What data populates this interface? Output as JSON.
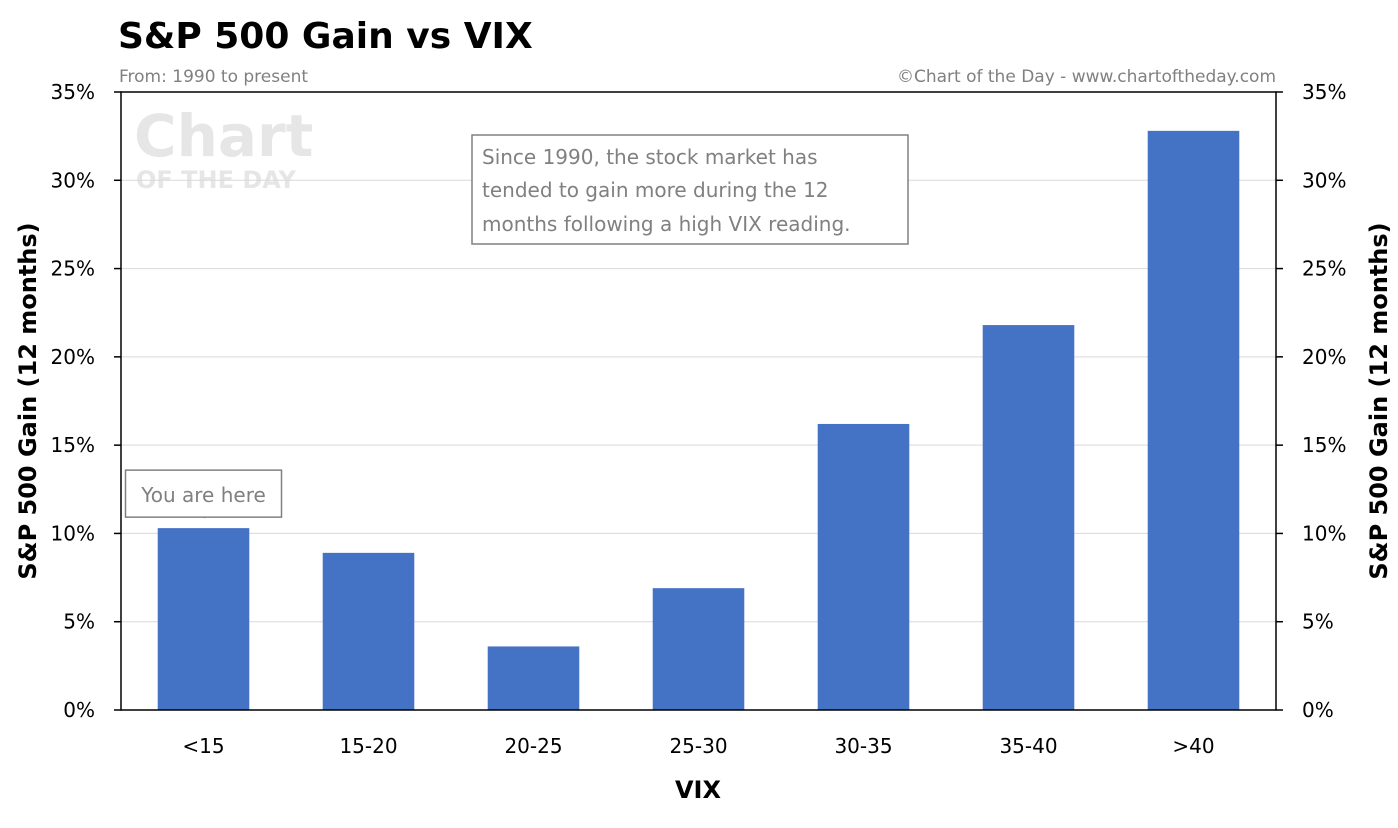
{
  "header": {
    "title": "S&P 500 Gain vs VIX",
    "subtitle": "From: 1990 to present",
    "credit": "©Chart of the Day - www.chartoftheday.com"
  },
  "watermark": {
    "line1": "Chart",
    "line2": "OF THE DAY"
  },
  "callouts": {
    "main_lines": [
      "Since 1990, the stock market has",
      "tended to gain more during the 12",
      "months following a high VIX reading."
    ],
    "here_text": "You are here",
    "here_category": "<15"
  },
  "colors": {
    "bar": "#4472c4",
    "grid": "#d9d9d9",
    "axis": "#000000",
    "callout_border": "#808080"
  },
  "chart_data": {
    "type": "bar",
    "title": "S&P 500 Gain vs VIX",
    "subtitle": "From: 1990 to present",
    "xlabel": "VIX",
    "ylabel": "S&P 500 Gain (12 months)",
    "ylabel_right": "S&P 500 Gain (12 months)",
    "categories": [
      "<15",
      "15-20",
      "20-25",
      "25-30",
      "30-35",
      "35-40",
      ">40"
    ],
    "values": [
      10.3,
      8.9,
      3.6,
      6.9,
      16.2,
      21.8,
      32.8
    ],
    "unit": "%",
    "ylim": [
      0,
      35
    ],
    "yticks": [
      0,
      5,
      10,
      15,
      20,
      25,
      30,
      35
    ],
    "ytick_labels": [
      "0%",
      "5%",
      "10%",
      "15%",
      "20%",
      "25%",
      "30%",
      "35%"
    ],
    "grid": true,
    "legend": "none"
  }
}
